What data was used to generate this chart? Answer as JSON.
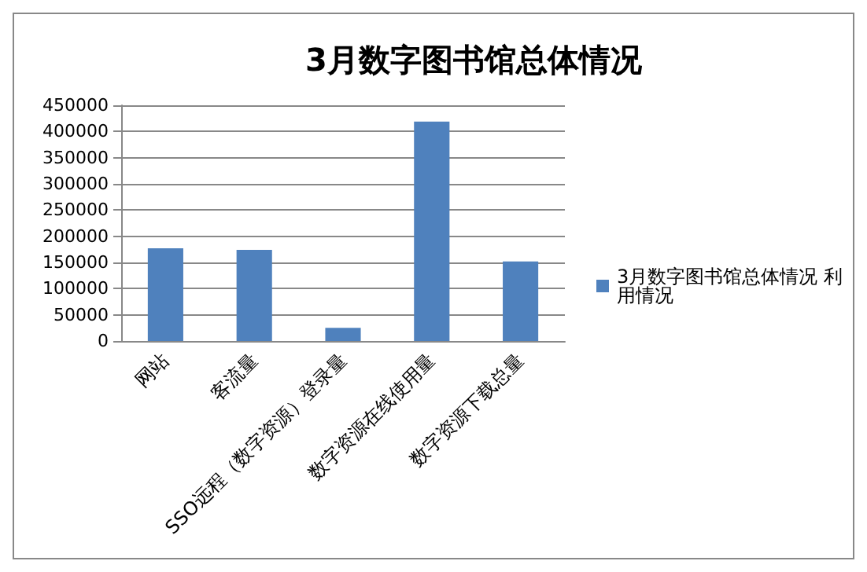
{
  "chart_data": {
    "type": "bar",
    "title": "3月数字图书馆总体情况",
    "categories": [
      "网站",
      "客流量",
      "SSO远程（数字资源）登录量",
      "数字资源在线使用量",
      "数字资源下载总量"
    ],
    "series": [
      {
        "name": "3月数字图书馆总体情况 利用情况",
        "color": "#4f81bd",
        "values": [
          177000,
          174000,
          25000,
          419000,
          152000
        ]
      }
    ],
    "ylim": [
      0,
      450000
    ],
    "yticks": [
      0,
      50000,
      100000,
      150000,
      200000,
      250000,
      300000,
      350000,
      400000,
      450000
    ],
    "grid": "y",
    "legend": "right"
  }
}
